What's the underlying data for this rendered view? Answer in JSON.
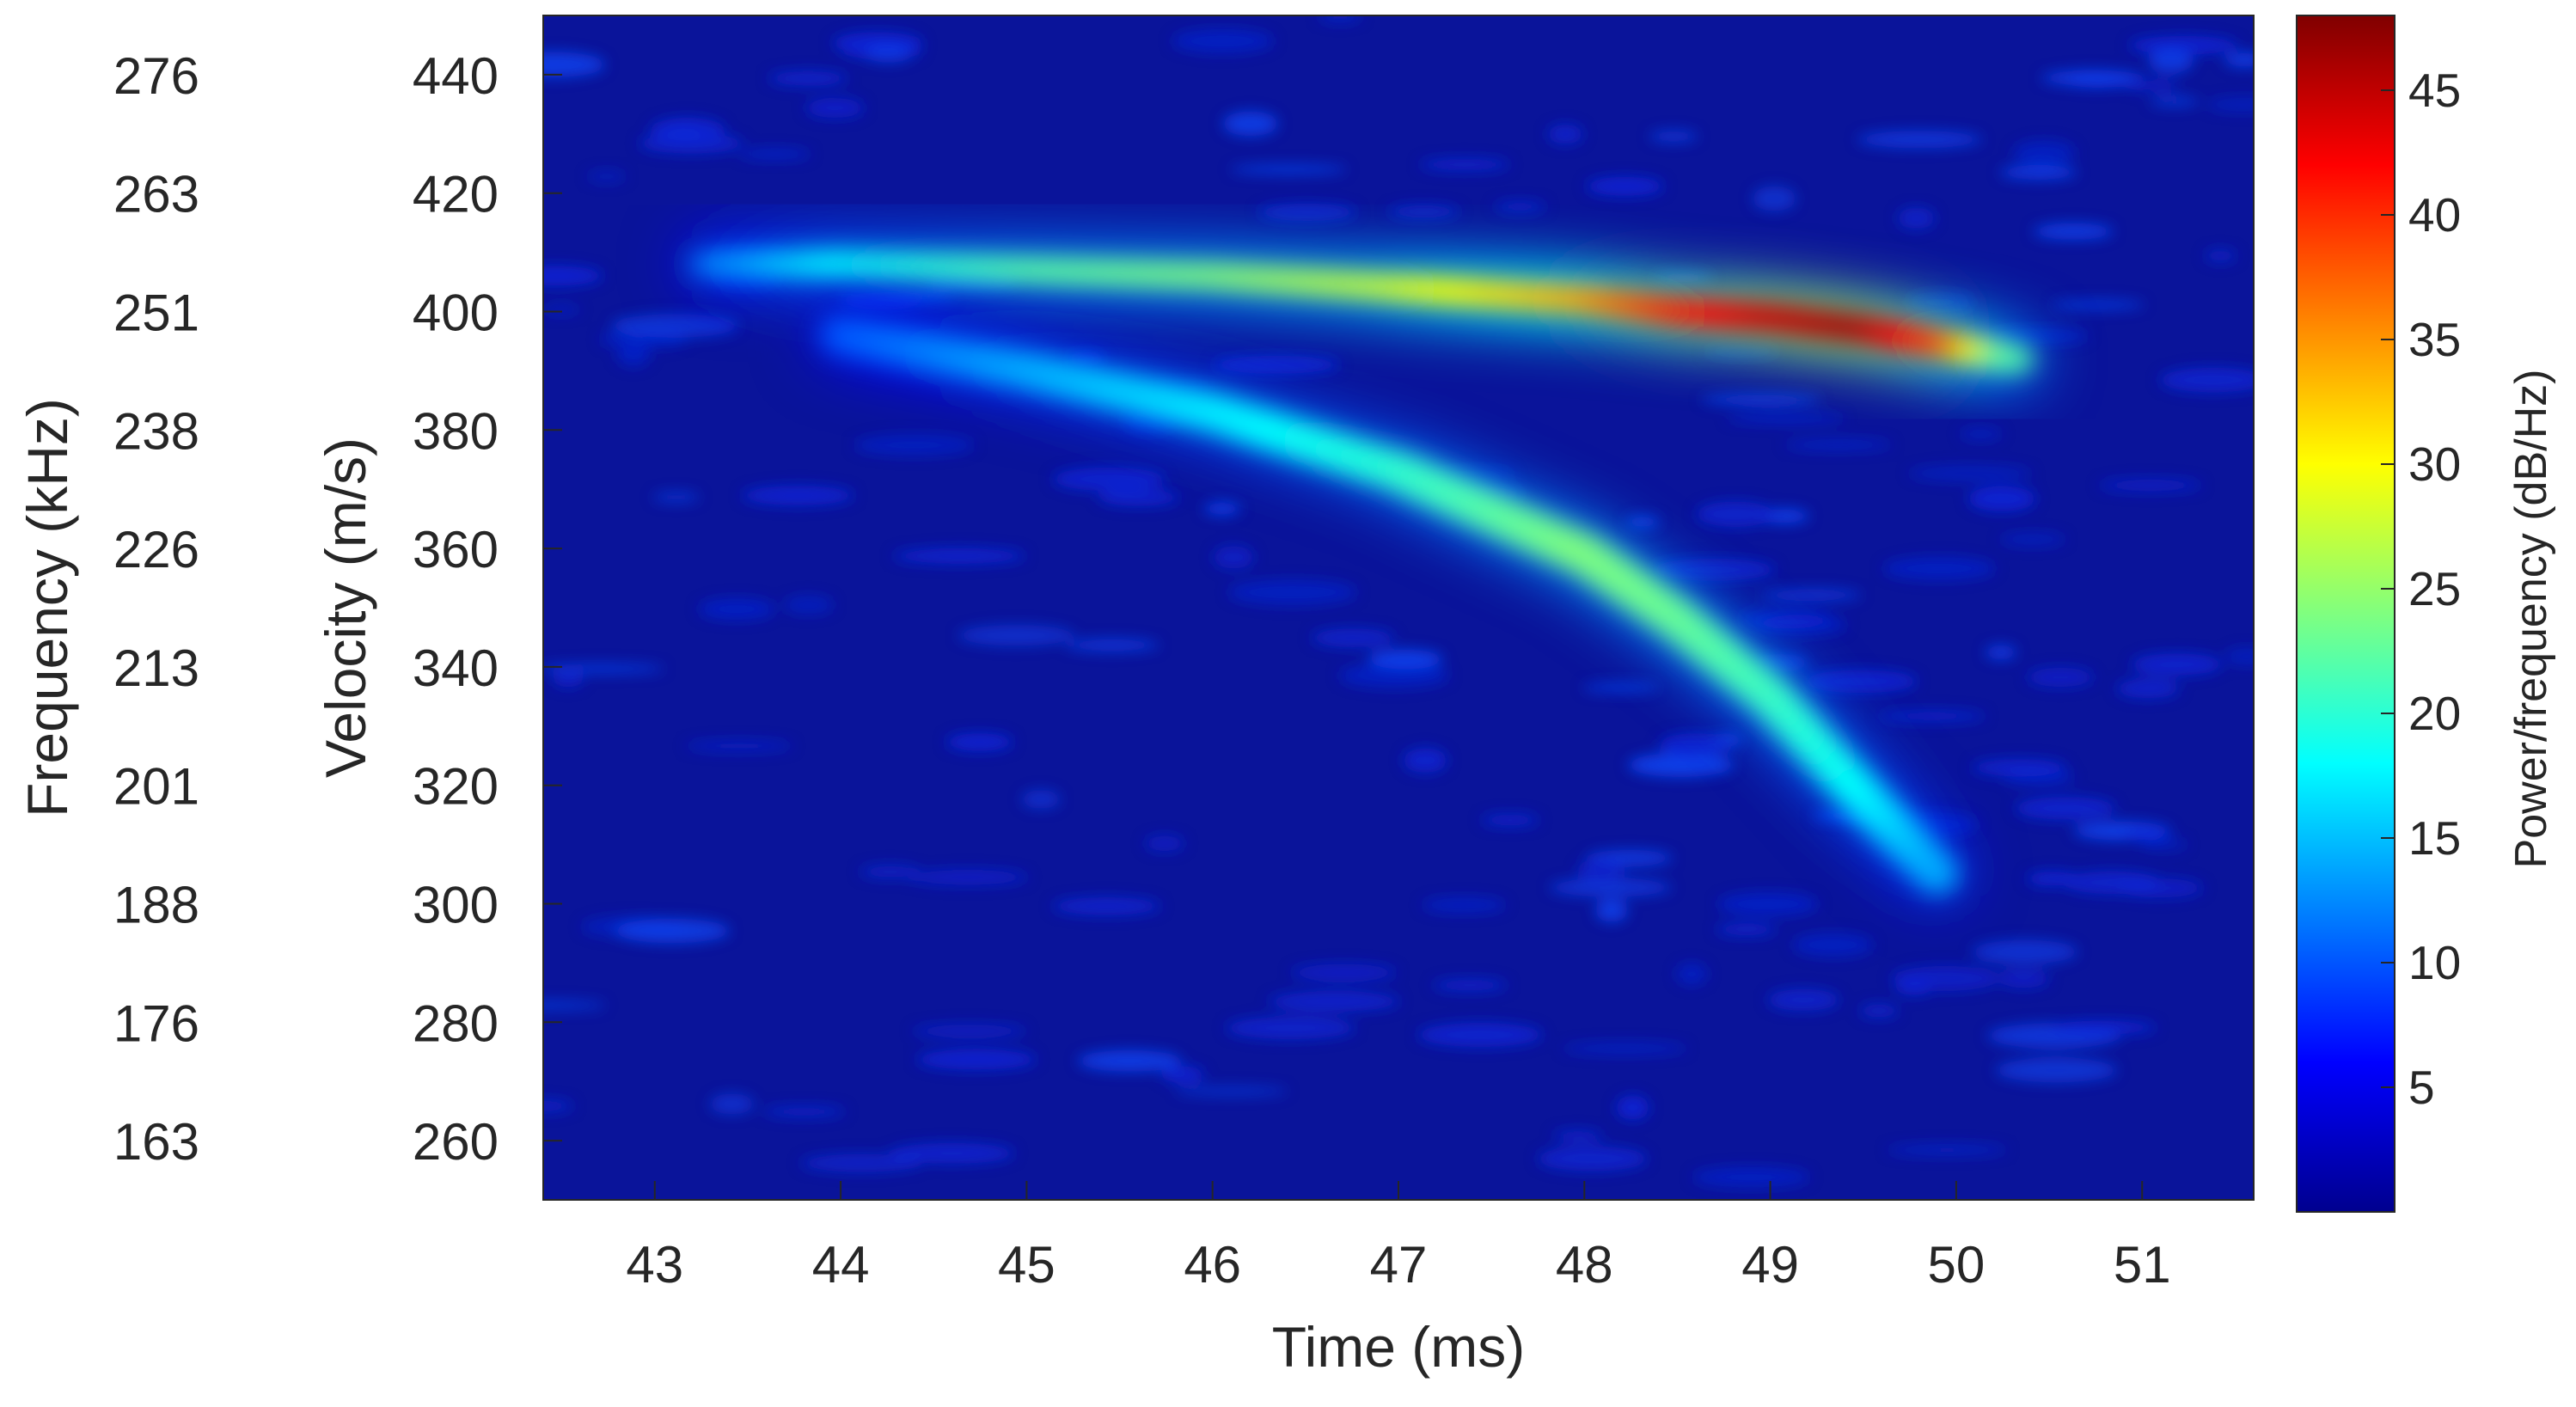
{
  "chart_data": {
    "type": "heatmap",
    "title": "",
    "xlabel": "Time (ms)",
    "ylabel": "Velocity (m/s)",
    "y2label": "Frequency (kHz)",
    "colorbar_label": "Power/frequency (dB/Hz)",
    "colormap": "jet",
    "colormap_stops": [
      "#00008f",
      "#0000ff",
      "#00ffff",
      "#ffff00",
      "#ff0000",
      "#800000"
    ],
    "background_color": "#0a149a",
    "xlim": [
      42.4,
      51.6
    ],
    "ylim": [
      250,
      450
    ],
    "clim": [
      0,
      48
    ],
    "x_ticks": [
      "43",
      "44",
      "45",
      "46",
      "47",
      "48",
      "49",
      "50",
      "51"
    ],
    "y_ticks": [
      "260",
      "280",
      "300",
      "320",
      "340",
      "360",
      "380",
      "400",
      "420",
      "440"
    ],
    "y2_ticks": [
      "163",
      "176",
      "188",
      "201",
      "213",
      "226",
      "238",
      "251",
      "263",
      "276"
    ],
    "colorbar_ticks": [
      "5",
      "10",
      "15",
      "20",
      "25",
      "30",
      "35",
      "40",
      "45"
    ],
    "series": [
      {
        "points": [
          {
            "t": 43.3,
            "v": 408,
            "db": 12
          },
          {
            "t": 44.0,
            "v": 408,
            "db": 18
          },
          {
            "t": 45.0,
            "v": 407,
            "db": 22
          },
          {
            "t": 46.0,
            "v": 406,
            "db": 24
          },
          {
            "t": 47.0,
            "v": 404,
            "db": 28
          },
          {
            "t": 47.5,
            "v": 403,
            "db": 31
          },
          {
            "t": 48.0,
            "v": 402,
            "db": 34
          },
          {
            "t": 48.5,
            "v": 400,
            "db": 40
          },
          {
            "t": 49.0,
            "v": 399,
            "db": 44
          },
          {
            "t": 49.5,
            "v": 397,
            "db": 46
          },
          {
            "t": 50.0,
            "v": 394,
            "db": 38
          },
          {
            "t": 50.3,
            "v": 392,
            "db": 22
          }
        ]
      },
      {
        "points": [
          {
            "t": 44.0,
            "v": 396,
            "db": 10
          },
          {
            "t": 45.0,
            "v": 390,
            "db": 14
          },
          {
            "t": 46.0,
            "v": 383,
            "db": 17
          },
          {
            "t": 47.0,
            "v": 373,
            "db": 20
          },
          {
            "t": 47.5,
            "v": 366,
            "db": 22
          },
          {
            "t": 48.0,
            "v": 359,
            "db": 24
          },
          {
            "t": 48.5,
            "v": 348,
            "db": 23
          },
          {
            "t": 49.0,
            "v": 335,
            "db": 21
          },
          {
            "t": 49.5,
            "v": 318,
            "db": 18
          },
          {
            "t": 49.9,
            "v": 305,
            "db": 14
          }
        ]
      }
    ]
  }
}
